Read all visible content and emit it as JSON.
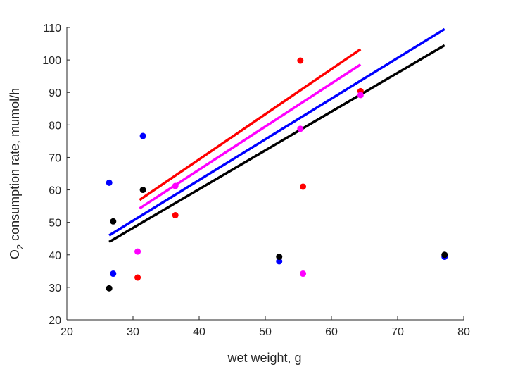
{
  "chart_data": {
    "type": "scatter",
    "xlabel": "wet weight, g",
    "ylabel": {
      "before": "O",
      "subscript": "2",
      "after": " consumption rate, mumol/h"
    },
    "xlim": [
      20,
      80
    ],
    "ylim": [
      20,
      110
    ],
    "xticks": [
      20,
      30,
      40,
      50,
      60,
      70,
      80
    ],
    "yticks": [
      20,
      30,
      40,
      50,
      60,
      70,
      80,
      90,
      100,
      110
    ],
    "grid": false,
    "legend": "none",
    "series": [
      {
        "color": "#ff0000",
        "points": [
          [
            30.7,
            33
          ],
          [
            36.4,
            52.2
          ],
          [
            55.3,
            99.8
          ],
          [
            55.7,
            61
          ],
          [
            64.4,
            90.4
          ]
        ],
        "fit": [
          [
            31,
            56.9
          ],
          [
            64.4,
            103.3
          ]
        ]
      },
      {
        "color": "#ff00ff",
        "points": [
          [
            30.7,
            41
          ],
          [
            36.4,
            61.2
          ],
          [
            55.3,
            78.8
          ],
          [
            55.7,
            34.2
          ],
          [
            64.4,
            89.2
          ]
        ],
        "fit": [
          [
            31,
            54.3
          ],
          [
            64.4,
            98.6
          ]
        ]
      },
      {
        "color": "#0000ff",
        "points": [
          [
            26.4,
            62.2
          ],
          [
            27,
            34.2
          ],
          [
            31.5,
            76.6
          ],
          [
            52.1,
            38
          ],
          [
            77.1,
            39.4
          ]
        ],
        "fit": [
          [
            26.4,
            46
          ],
          [
            77.1,
            109.5
          ]
        ]
      },
      {
        "color": "#000000",
        "points": [
          [
            26.4,
            29.7
          ],
          [
            27,
            50.3
          ],
          [
            31.5,
            60
          ],
          [
            52.1,
            39.4
          ],
          [
            77.1,
            40
          ]
        ],
        "fit": [
          [
            26.4,
            44
          ],
          [
            77.1,
            104.5
          ]
        ]
      }
    ]
  }
}
